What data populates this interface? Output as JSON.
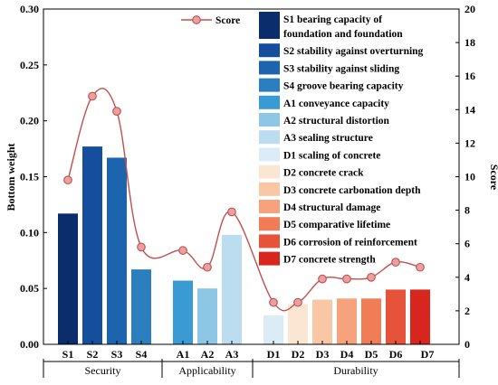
{
  "chart_data": {
    "type": "bar",
    "ylabel": "Bottom weight",
    "y2label": "Score",
    "ylim": [
      0,
      0.3
    ],
    "yticks": [
      "0.00",
      "0.05",
      "0.10",
      "0.15",
      "0.20",
      "0.25",
      "0.30"
    ],
    "y2lim": [
      0,
      20
    ],
    "y2ticks": [
      "0",
      "2",
      "4",
      "6",
      "8",
      "10",
      "12",
      "14",
      "16",
      "18",
      "20"
    ],
    "categories": [
      "S1",
      "S2",
      "S3",
      "S4",
      "A1",
      "A2",
      "A3",
      "D1",
      "D2",
      "D3",
      "D4",
      "D5",
      "D6",
      "D7"
    ],
    "groups": [
      {
        "label": "Security",
        "members": [
          "S1",
          "S2",
          "S3",
          "S4"
        ]
      },
      {
        "label": "Applicability",
        "members": [
          "A1",
          "A2",
          "A3"
        ]
      },
      {
        "label": "Durability",
        "members": [
          "D1",
          "D2",
          "D3",
          "D4",
          "D5",
          "D6",
          "D7"
        ]
      }
    ],
    "series": [
      {
        "name": "Bottom weight",
        "axis": "left",
        "values": [
          0.117,
          0.177,
          0.167,
          0.067,
          0.057,
          0.05,
          0.098,
          0.026,
          0.036,
          0.04,
          0.041,
          0.041,
          0.049,
          0.049
        ],
        "colors": [
          "#0b2d6b",
          "#144e9c",
          "#1c64ad",
          "#2b7fbf",
          "#3a9ad3",
          "#8ec6e6",
          "#bcdcef",
          "#dcecf7",
          "#fbe6d4",
          "#f9c6a6",
          "#f6a27c",
          "#f17d57",
          "#e6523a",
          "#d7261e"
        ]
      },
      {
        "name": "Score",
        "axis": "right",
        "type": "line",
        "values": [
          9.8,
          14.8,
          13.9,
          5.8,
          5.6,
          4.6,
          7.9,
          2.5,
          2.5,
          3.9,
          3.9,
          4.0,
          4.9,
          4.6
        ],
        "color": "#c0504d",
        "marker_fill": "#e8a0a0"
      }
    ],
    "legend": {
      "position": "top-right",
      "line_entry": "Score",
      "entries": [
        {
          "lines": [
            "S1 bearing capacity of",
            "foundation and foundation"
          ],
          "color": "#0b2d6b"
        },
        {
          "lines": [
            "S2 stability against overturning"
          ],
          "color": "#144e9c"
        },
        {
          "lines": [
            "S3 stability against sliding"
          ],
          "color": "#1c64ad"
        },
        {
          "lines": [
            "S4 groove bearing capacity"
          ],
          "color": "#2b7fbf"
        },
        {
          "lines": [
            "A1 conveyance capacity"
          ],
          "color": "#3a9ad3"
        },
        {
          "lines": [
            "A2 structural distortion"
          ],
          "color": "#8ec6e6"
        },
        {
          "lines": [
            "A3 sealing structure"
          ],
          "color": "#bcdcef"
        },
        {
          "lines": [
            "D1 scaling of concrete"
          ],
          "color": "#dcecf7"
        },
        {
          "lines": [
            "D2 concrete crack"
          ],
          "color": "#fbe6d4"
        },
        {
          "lines": [
            "D3 concrete carbonation depth"
          ],
          "color": "#f9c6a6"
        },
        {
          "lines": [
            "D4 structural damage"
          ],
          "color": "#f6a27c"
        },
        {
          "lines": [
            "D5 comparative lifetime"
          ],
          "color": "#f17d57"
        },
        {
          "lines": [
            "D6 corrosion of reinforcement"
          ],
          "color": "#e6523a"
        },
        {
          "lines": [
            "D7 concrete strength"
          ],
          "color": "#d7261e"
        }
      ]
    }
  }
}
